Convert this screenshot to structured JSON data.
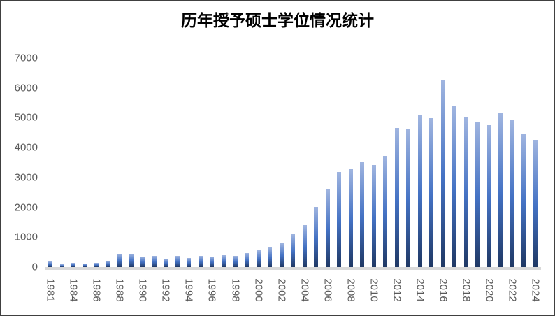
{
  "chart_data": {
    "type": "bar",
    "title": "历年授予硕士学位情况统计",
    "categories": [
      "1981",
      "1982",
      "1984",
      "1985",
      "1986",
      "1987",
      "1988",
      "1989",
      "1990",
      "1991",
      "1992",
      "1993",
      "1994",
      "1995",
      "1996",
      "1997",
      "1998",
      "1999",
      "2000",
      "2001",
      "2002",
      "2003",
      "2004",
      "2005",
      "2006",
      "2007",
      "2008",
      "2009",
      "2010",
      "2011",
      "2012",
      "2013",
      "2014",
      "2015",
      "2016",
      "2017",
      "2018",
      "2019",
      "2020",
      "2021",
      "2022",
      "2023",
      "2024"
    ],
    "values": [
      190,
      95,
      135,
      125,
      150,
      220,
      455,
      440,
      355,
      380,
      275,
      380,
      300,
      370,
      345,
      400,
      380,
      480,
      570,
      660,
      790,
      1090,
      1410,
      2020,
      2610,
      3180,
      3280,
      3510,
      3430,
      3730,
      4670,
      4630,
      5090,
      4980,
      6260,
      5380,
      5010,
      4870,
      4750,
      5160,
      4920,
      4480,
      4260
    ],
    "xlabel": "",
    "ylabel": "",
    "ylim": [
      0,
      7000
    ],
    "yticks": [
      0,
      1000,
      2000,
      3000,
      4000,
      5000,
      6000,
      7000
    ],
    "xtick_labels_shown": [
      "1981",
      "1984",
      "1986",
      "1988",
      "1990",
      "1992",
      "1994",
      "1996",
      "1998",
      "2000",
      "2002",
      "2004",
      "2006",
      "2008",
      "2010",
      "2012",
      "2014",
      "2016",
      "2018",
      "2020",
      "2022",
      "2024"
    ],
    "xtick_every_n_categories": 2,
    "grid": false,
    "legend": "none",
    "bar_gradient_top": "#A0B5E0",
    "bar_gradient_mid": "#4472C4",
    "bar_gradient_bottom": "#1F3864",
    "axis_text_color": "#595959",
    "axis_line_color": "#D9D9D9",
    "border_color": "#404040"
  }
}
